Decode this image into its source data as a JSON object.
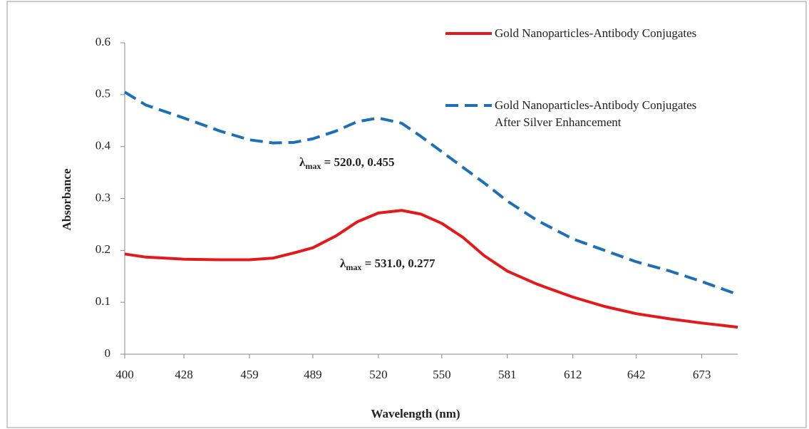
{
  "chart_data": {
    "type": "line",
    "xlabel": "Wavelength (nm)",
    "ylabel": "Absorbance",
    "x": [
      400,
      410,
      428,
      445,
      459,
      470,
      480,
      489,
      500,
      510,
      520,
      531,
      540,
      550,
      560,
      570,
      581,
      595,
      612,
      627,
      642,
      658,
      673,
      690
    ],
    "series": [
      {
        "name": "Gold Nanoparticles-Antibody Conjugates",
        "color": "#e31a1c",
        "dash": false,
        "values": [
          0.193,
          0.187,
          0.183,
          0.182,
          0.182,
          0.185,
          0.195,
          0.205,
          0.228,
          0.255,
          0.272,
          0.277,
          0.27,
          0.252,
          0.225,
          0.19,
          0.16,
          0.135,
          0.11,
          0.092,
          0.078,
          0.068,
          0.06,
          0.052
        ]
      },
      {
        "name": "Gold Nanoparticles-Antibody Conjugates\nAfter Silver Enhancement",
        "color": "#1f6fb4",
        "dash": true,
        "values": [
          0.505,
          0.48,
          0.455,
          0.43,
          0.413,
          0.407,
          0.408,
          0.415,
          0.43,
          0.448,
          0.455,
          0.445,
          0.42,
          0.39,
          0.36,
          0.33,
          0.295,
          0.258,
          0.222,
          0.2,
          0.178,
          0.16,
          0.14,
          0.115
        ]
      }
    ],
    "annotations": [
      {
        "symbol": "λ",
        "subscript": "max",
        "text": " = 520.0, 0.455"
      },
      {
        "symbol": "λ",
        "subscript": "max",
        "text": " = 531.0, 0.277"
      }
    ],
    "xlim": [
      400,
      690
    ],
    "xticks": [
      400,
      428,
      459,
      489,
      520,
      550,
      581,
      612,
      642,
      673
    ],
    "ylim": [
      0,
      0.6
    ],
    "yticks": [
      0,
      0.1,
      0.2,
      0.3,
      0.4,
      0.5,
      0.6
    ],
    "grid": false,
    "legend": "top-right"
  }
}
